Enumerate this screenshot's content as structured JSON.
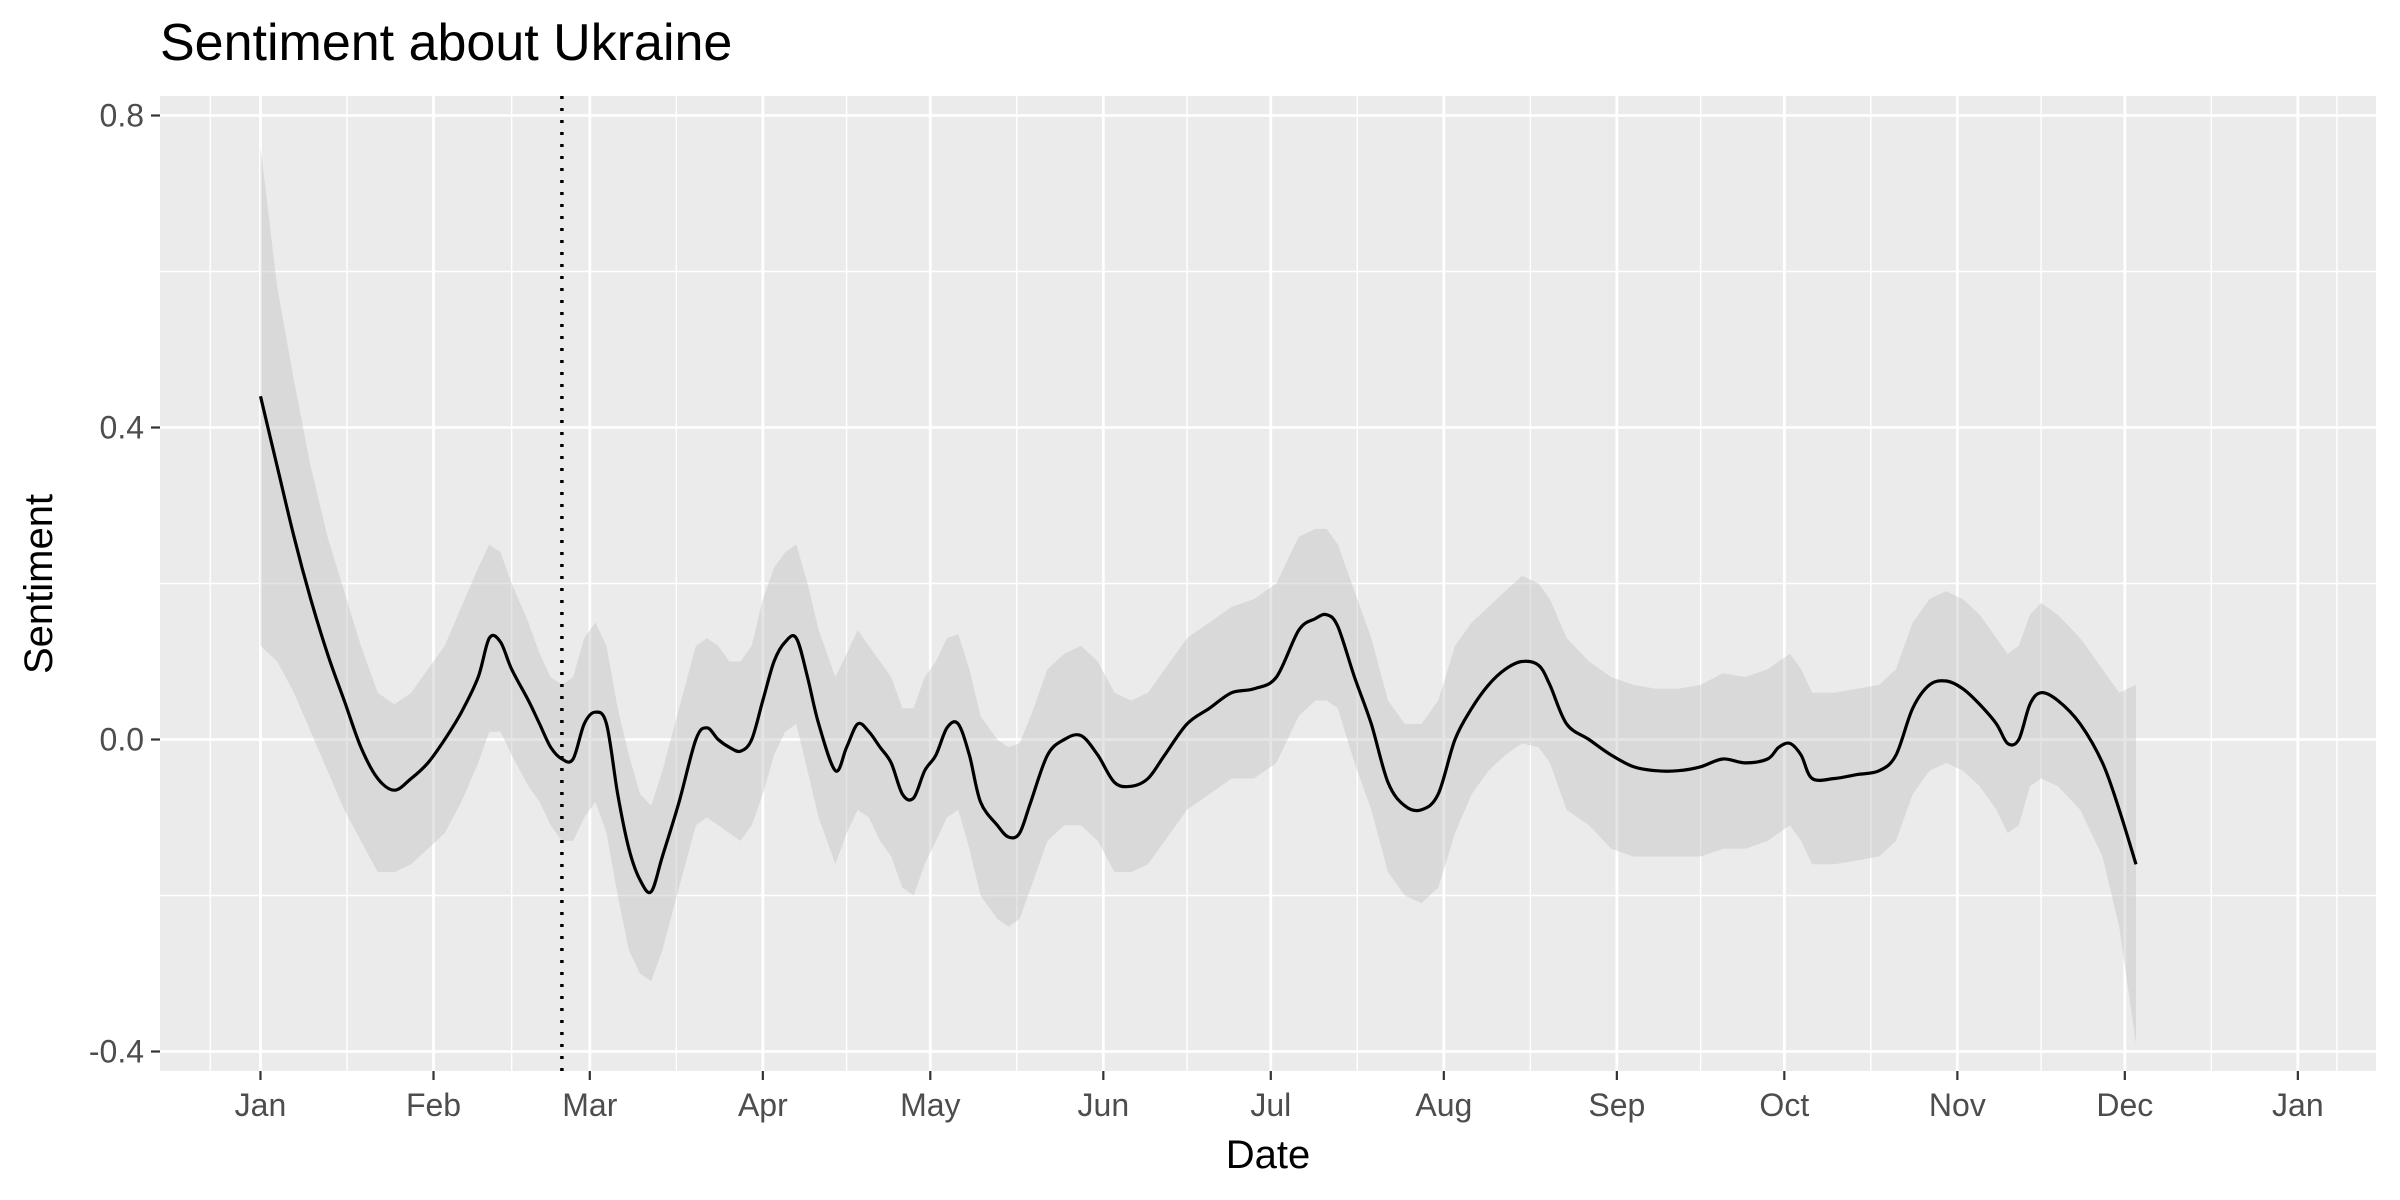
{
  "chart_data": {
    "type": "line",
    "title": "Sentiment about Ukraine",
    "xlabel": "Date",
    "ylabel": "Sentiment",
    "x_ticks": [
      "Jan",
      "Feb",
      "Mar",
      "Apr",
      "May",
      "Jun",
      "Jul",
      "Aug",
      "Sep",
      "Oct",
      "Nov",
      "Dec",
      "Jan"
    ],
    "x_tick_days": [
      0,
      31,
      59,
      90,
      120,
      151,
      181,
      212,
      243,
      273,
      304,
      334,
      365
    ],
    "y_ticks": [
      "-0.4",
      "0.0",
      "0.4",
      "0.8"
    ],
    "y_tick_values": [
      -0.4,
      0.0,
      0.4,
      0.8
    ],
    "xlim_days": [
      -18,
      379
    ],
    "ylim": [
      -0.425,
      0.825
    ],
    "vline_day": 54,
    "grid": true,
    "series": [
      {
        "values": [
          {
            "x": 0,
            "y": 0.44,
            "lo": 0.12,
            "hi": 0.76
          },
          {
            "x": 3,
            "y": 0.35,
            "lo": 0.1,
            "hi": 0.58
          },
          {
            "x": 6,
            "y": 0.26,
            "lo": 0.06,
            "hi": 0.46
          },
          {
            "x": 9,
            "y": 0.18,
            "lo": 0.01,
            "hi": 0.35
          },
          {
            "x": 12,
            "y": 0.11,
            "lo": -0.04,
            "hi": 0.26
          },
          {
            "x": 15,
            "y": 0.05,
            "lo": -0.09,
            "hi": 0.19
          },
          {
            "x": 18,
            "y": -0.01,
            "lo": -0.13,
            "hi": 0.12
          },
          {
            "x": 21,
            "y": -0.05,
            "lo": -0.17,
            "hi": 0.06
          },
          {
            "x": 24,
            "y": -0.065,
            "lo": -0.17,
            "hi": 0.045
          },
          {
            "x": 27,
            "y": -0.05,
            "lo": -0.16,
            "hi": 0.06
          },
          {
            "x": 30,
            "y": -0.03,
            "lo": -0.14,
            "hi": 0.09
          },
          {
            "x": 33,
            "y": 0.0,
            "lo": -0.12,
            "hi": 0.12
          },
          {
            "x": 36,
            "y": 0.035,
            "lo": -0.08,
            "hi": 0.17
          },
          {
            "x": 39,
            "y": 0.08,
            "lo": -0.03,
            "hi": 0.22
          },
          {
            "x": 41,
            "y": 0.13,
            "lo": 0.01,
            "hi": 0.25
          },
          {
            "x": 43,
            "y": 0.125,
            "lo": 0.01,
            "hi": 0.24
          },
          {
            "x": 45,
            "y": 0.09,
            "lo": -0.02,
            "hi": 0.2
          },
          {
            "x": 48,
            "y": 0.05,
            "lo": -0.06,
            "hi": 0.15
          },
          {
            "x": 50,
            "y": 0.02,
            "lo": -0.08,
            "hi": 0.11
          },
          {
            "x": 52,
            "y": -0.01,
            "lo": -0.11,
            "hi": 0.08
          },
          {
            "x": 54,
            "y": -0.025,
            "lo": -0.13,
            "hi": 0.07
          },
          {
            "x": 56,
            "y": -0.025,
            "lo": -0.13,
            "hi": 0.08
          },
          {
            "x": 58,
            "y": 0.02,
            "lo": -0.1,
            "hi": 0.13
          },
          {
            "x": 60,
            "y": 0.035,
            "lo": -0.08,
            "hi": 0.15
          },
          {
            "x": 62,
            "y": 0.02,
            "lo": -0.12,
            "hi": 0.12
          },
          {
            "x": 64,
            "y": -0.07,
            "lo": -0.2,
            "hi": 0.04
          },
          {
            "x": 66,
            "y": -0.14,
            "lo": -0.27,
            "hi": -0.02
          },
          {
            "x": 68,
            "y": -0.18,
            "lo": -0.3,
            "hi": -0.07
          },
          {
            "x": 70,
            "y": -0.195,
            "lo": -0.31,
            "hi": -0.085
          },
          {
            "x": 72,
            "y": -0.15,
            "lo": -0.27,
            "hi": -0.04
          },
          {
            "x": 75,
            "y": -0.08,
            "lo": -0.19,
            "hi": 0.04
          },
          {
            "x": 78,
            "y": 0.0,
            "lo": -0.11,
            "hi": 0.12
          },
          {
            "x": 80,
            "y": 0.015,
            "lo": -0.1,
            "hi": 0.13
          },
          {
            "x": 82,
            "y": 0.0,
            "lo": -0.11,
            "hi": 0.12
          },
          {
            "x": 84,
            "y": -0.01,
            "lo": -0.12,
            "hi": 0.1
          },
          {
            "x": 86,
            "y": -0.015,
            "lo": -0.13,
            "hi": 0.1
          },
          {
            "x": 88,
            "y": 0.0,
            "lo": -0.11,
            "hi": 0.12
          },
          {
            "x": 90,
            "y": 0.05,
            "lo": -0.07,
            "hi": 0.18
          },
          {
            "x": 92,
            "y": 0.1,
            "lo": -0.02,
            "hi": 0.22
          },
          {
            "x": 94,
            "y": 0.125,
            "lo": 0.01,
            "hi": 0.24
          },
          {
            "x": 96,
            "y": 0.13,
            "lo": 0.02,
            "hi": 0.25
          },
          {
            "x": 98,
            "y": 0.08,
            "lo": -0.04,
            "hi": 0.2
          },
          {
            "x": 100,
            "y": 0.02,
            "lo": -0.1,
            "hi": 0.14
          },
          {
            "x": 103,
            "y": -0.04,
            "lo": -0.16,
            "hi": 0.08
          },
          {
            "x": 105,
            "y": -0.01,
            "lo": -0.12,
            "hi": 0.11
          },
          {
            "x": 107,
            "y": 0.02,
            "lo": -0.09,
            "hi": 0.14
          },
          {
            "x": 109,
            "y": 0.01,
            "lo": -0.1,
            "hi": 0.12
          },
          {
            "x": 111,
            "y": -0.01,
            "lo": -0.13,
            "hi": 0.1
          },
          {
            "x": 113,
            "y": -0.03,
            "lo": -0.15,
            "hi": 0.08
          },
          {
            "x": 115,
            "y": -0.07,
            "lo": -0.19,
            "hi": 0.04
          },
          {
            "x": 117,
            "y": -0.075,
            "lo": -0.2,
            "hi": 0.04
          },
          {
            "x": 119,
            "y": -0.04,
            "lo": -0.16,
            "hi": 0.08
          },
          {
            "x": 121,
            "y": -0.02,
            "lo": -0.13,
            "hi": 0.1
          },
          {
            "x": 123,
            "y": 0.015,
            "lo": -0.1,
            "hi": 0.13
          },
          {
            "x": 125,
            "y": 0.02,
            "lo": -0.09,
            "hi": 0.135
          },
          {
            "x": 127,
            "y": -0.02,
            "lo": -0.14,
            "hi": 0.09
          },
          {
            "x": 129,
            "y": -0.08,
            "lo": -0.2,
            "hi": 0.03
          },
          {
            "x": 132,
            "y": -0.11,
            "lo": -0.23,
            "hi": 0.0
          },
          {
            "x": 134,
            "y": -0.125,
            "lo": -0.24,
            "hi": -0.01
          },
          {
            "x": 136,
            "y": -0.12,
            "lo": -0.23,
            "hi": -0.005
          },
          {
            "x": 138,
            "y": -0.08,
            "lo": -0.19,
            "hi": 0.03
          },
          {
            "x": 141,
            "y": -0.02,
            "lo": -0.13,
            "hi": 0.09
          },
          {
            "x": 144,
            "y": 0.0,
            "lo": -0.11,
            "hi": 0.11
          },
          {
            "x": 147,
            "y": 0.005,
            "lo": -0.11,
            "hi": 0.12
          },
          {
            "x": 150,
            "y": -0.02,
            "lo": -0.13,
            "hi": 0.1
          },
          {
            "x": 153,
            "y": -0.055,
            "lo": -0.17,
            "hi": 0.06
          },
          {
            "x": 156,
            "y": -0.06,
            "lo": -0.17,
            "hi": 0.05
          },
          {
            "x": 159,
            "y": -0.05,
            "lo": -0.16,
            "hi": 0.06
          },
          {
            "x": 162,
            "y": -0.02,
            "lo": -0.13,
            "hi": 0.09
          },
          {
            "x": 166,
            "y": 0.02,
            "lo": -0.09,
            "hi": 0.13
          },
          {
            "x": 170,
            "y": 0.04,
            "lo": -0.07,
            "hi": 0.15
          },
          {
            "x": 174,
            "y": 0.06,
            "lo": -0.05,
            "hi": 0.17
          },
          {
            "x": 178,
            "y": 0.065,
            "lo": -0.05,
            "hi": 0.18
          },
          {
            "x": 182,
            "y": 0.08,
            "lo": -0.03,
            "hi": 0.2
          },
          {
            "x": 186,
            "y": 0.14,
            "lo": 0.03,
            "hi": 0.26
          },
          {
            "x": 189,
            "y": 0.155,
            "lo": 0.05,
            "hi": 0.27
          },
          {
            "x": 191,
            "y": 0.16,
            "lo": 0.05,
            "hi": 0.27
          },
          {
            "x": 193,
            "y": 0.145,
            "lo": 0.04,
            "hi": 0.25
          },
          {
            "x": 196,
            "y": 0.08,
            "lo": -0.03,
            "hi": 0.19
          },
          {
            "x": 199,
            "y": 0.02,
            "lo": -0.09,
            "hi": 0.13
          },
          {
            "x": 202,
            "y": -0.055,
            "lo": -0.17,
            "hi": 0.05
          },
          {
            "x": 205,
            "y": -0.085,
            "lo": -0.2,
            "hi": 0.02
          },
          {
            "x": 208,
            "y": -0.09,
            "lo": -0.21,
            "hi": 0.02
          },
          {
            "x": 211,
            "y": -0.07,
            "lo": -0.19,
            "hi": 0.05
          },
          {
            "x": 214,
            "y": 0.0,
            "lo": -0.12,
            "hi": 0.12
          },
          {
            "x": 217,
            "y": 0.04,
            "lo": -0.07,
            "hi": 0.15
          },
          {
            "x": 220,
            "y": 0.07,
            "lo": -0.04,
            "hi": 0.17
          },
          {
            "x": 223,
            "y": 0.09,
            "lo": -0.02,
            "hi": 0.19
          },
          {
            "x": 226,
            "y": 0.1,
            "lo": -0.005,
            "hi": 0.21
          },
          {
            "x": 229,
            "y": 0.095,
            "lo": -0.01,
            "hi": 0.2
          },
          {
            "x": 231,
            "y": 0.07,
            "lo": -0.03,
            "hi": 0.18
          },
          {
            "x": 234,
            "y": 0.02,
            "lo": -0.09,
            "hi": 0.13
          },
          {
            "x": 238,
            "y": 0.0,
            "lo": -0.11,
            "hi": 0.1
          },
          {
            "x": 242,
            "y": -0.02,
            "lo": -0.14,
            "hi": 0.08
          },
          {
            "x": 246,
            "y": -0.035,
            "lo": -0.15,
            "hi": 0.07
          },
          {
            "x": 250,
            "y": -0.04,
            "lo": -0.15,
            "hi": 0.065
          },
          {
            "x": 254,
            "y": -0.04,
            "lo": -0.15,
            "hi": 0.065
          },
          {
            "x": 258,
            "y": -0.035,
            "lo": -0.15,
            "hi": 0.07
          },
          {
            "x": 262,
            "y": -0.025,
            "lo": -0.14,
            "hi": 0.085
          },
          {
            "x": 266,
            "y": -0.03,
            "lo": -0.14,
            "hi": 0.08
          },
          {
            "x": 270,
            "y": -0.025,
            "lo": -0.13,
            "hi": 0.09
          },
          {
            "x": 272,
            "y": -0.01,
            "lo": -0.12,
            "hi": 0.1
          },
          {
            "x": 274,
            "y": -0.005,
            "lo": -0.11,
            "hi": 0.11
          },
          {
            "x": 276,
            "y": -0.02,
            "lo": -0.13,
            "hi": 0.09
          },
          {
            "x": 278,
            "y": -0.05,
            "lo": -0.16,
            "hi": 0.06
          },
          {
            "x": 282,
            "y": -0.05,
            "lo": -0.16,
            "hi": 0.06
          },
          {
            "x": 286,
            "y": -0.045,
            "lo": -0.155,
            "hi": 0.065
          },
          {
            "x": 290,
            "y": -0.04,
            "lo": -0.15,
            "hi": 0.07
          },
          {
            "x": 293,
            "y": -0.02,
            "lo": -0.13,
            "hi": 0.09
          },
          {
            "x": 296,
            "y": 0.04,
            "lo": -0.07,
            "hi": 0.15
          },
          {
            "x": 299,
            "y": 0.07,
            "lo": -0.04,
            "hi": 0.18
          },
          {
            "x": 302,
            "y": 0.075,
            "lo": -0.03,
            "hi": 0.19
          },
          {
            "x": 305,
            "y": 0.065,
            "lo": -0.04,
            "hi": 0.18
          },
          {
            "x": 308,
            "y": 0.045,
            "lo": -0.06,
            "hi": 0.16
          },
          {
            "x": 311,
            "y": 0.02,
            "lo": -0.09,
            "hi": 0.13
          },
          {
            "x": 313,
            "y": -0.005,
            "lo": -0.12,
            "hi": 0.11
          },
          {
            "x": 315,
            "y": 0.0,
            "lo": -0.11,
            "hi": 0.12
          },
          {
            "x": 317,
            "y": 0.045,
            "lo": -0.06,
            "hi": 0.16
          },
          {
            "x": 319,
            "y": 0.06,
            "lo": -0.05,
            "hi": 0.175
          },
          {
            "x": 322,
            "y": 0.05,
            "lo": -0.06,
            "hi": 0.16
          },
          {
            "x": 326,
            "y": 0.02,
            "lo": -0.09,
            "hi": 0.13
          },
          {
            "x": 330,
            "y": -0.03,
            "lo": -0.15,
            "hi": 0.09
          },
          {
            "x": 333,
            "y": -0.09,
            "lo": -0.24,
            "hi": 0.06
          },
          {
            "x": 336,
            "y": -0.16,
            "lo": -0.39,
            "hi": 0.07
          }
        ]
      }
    ]
  }
}
